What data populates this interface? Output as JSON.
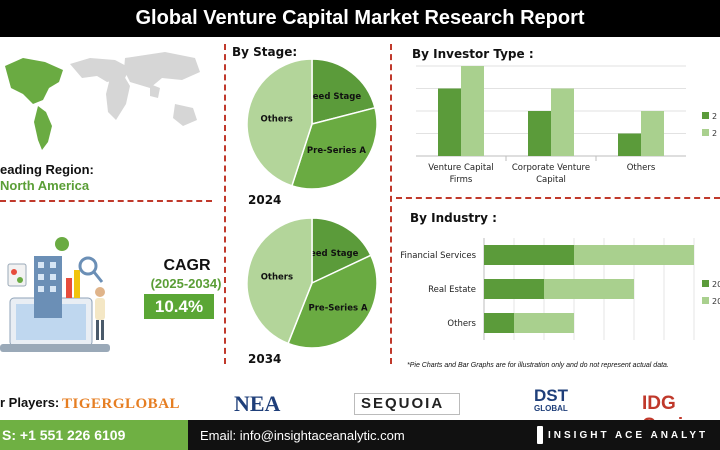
{
  "header": {
    "title": "Global Venture Capital Market Research Report"
  },
  "region": {
    "label": "eading Region:",
    "value": "North America"
  },
  "cagr": {
    "title": "CAGR",
    "range": "(2025-2034)",
    "value": "10.4%"
  },
  "by_stage": {
    "title": "By Stage:"
  },
  "by_investor": {
    "title": "By Investor Type  :"
  },
  "by_industry": {
    "title": "By Industry :"
  },
  "note": "*Pie Charts and Bar Graphs are for illustration only and do not represent actual data.",
  "players": {
    "label": "r Players:",
    "logos": [
      "TIGERGLOBAL",
      "NEA",
      "SEQUOIA",
      "DST",
      "GLOBAL",
      "IDG Capi"
    ]
  },
  "footer": {
    "phone": "S: +1 551 226 6109",
    "email": "Email: info@insightaceanalytic.com",
    "brand": "INSIGHT ACE ANALYT"
  },
  "colors": {
    "dark_green": "#5b9b3a",
    "light_green": "#a9d08e",
    "mid_green": "#72b047",
    "accent_red": "#c0392b"
  },
  "chart_data": [
    {
      "type": "pie",
      "year_label": "2024",
      "slices": [
        {
          "label": "Seed Stage",
          "value": 21,
          "color": "#5b9b3a"
        },
        {
          "label": "Pre-Series A",
          "value": 34,
          "color": "#6aab42"
        },
        {
          "label": "Others",
          "value": 45,
          "color": "#b3d59a"
        }
      ]
    },
    {
      "type": "pie",
      "year_label": "2034",
      "slices": [
        {
          "label": "Seed Stage",
          "value": 18,
          "color": "#5b9b3a"
        },
        {
          "label": "Pre-Series A",
          "value": 38,
          "color": "#6aab42"
        },
        {
          "label": "Others",
          "value": 44,
          "color": "#b3d59a"
        }
      ]
    },
    {
      "type": "bar",
      "categories": [
        "Venture Capital Firms",
        "Corporate Venture Capital",
        "Others"
      ],
      "category_lines": [
        [
          "Venture Capital",
          "Firms"
        ],
        [
          "Corporate Venture",
          "Capital"
        ],
        [
          "Others"
        ]
      ],
      "series": [
        {
          "name": "2",
          "values": [
            3,
            2,
            1
          ],
          "color": "#5b9b3a"
        },
        {
          "name": "2",
          "values": [
            4,
            3,
            2
          ],
          "color": "#a9d08e"
        }
      ],
      "ylim": [
        0,
        4
      ]
    },
    {
      "type": "bar",
      "orientation": "horizontal",
      "stacked": true,
      "categories": [
        "Financial Services",
        "Real Estate",
        "Others"
      ],
      "series": [
        {
          "name": "20",
          "values": [
            3,
            2,
            1
          ],
          "color": "#5b9b3a"
        },
        {
          "name": "20",
          "values": [
            4,
            3,
            2
          ],
          "color": "#a9d08e"
        }
      ],
      "xlim": [
        0,
        7
      ]
    }
  ]
}
